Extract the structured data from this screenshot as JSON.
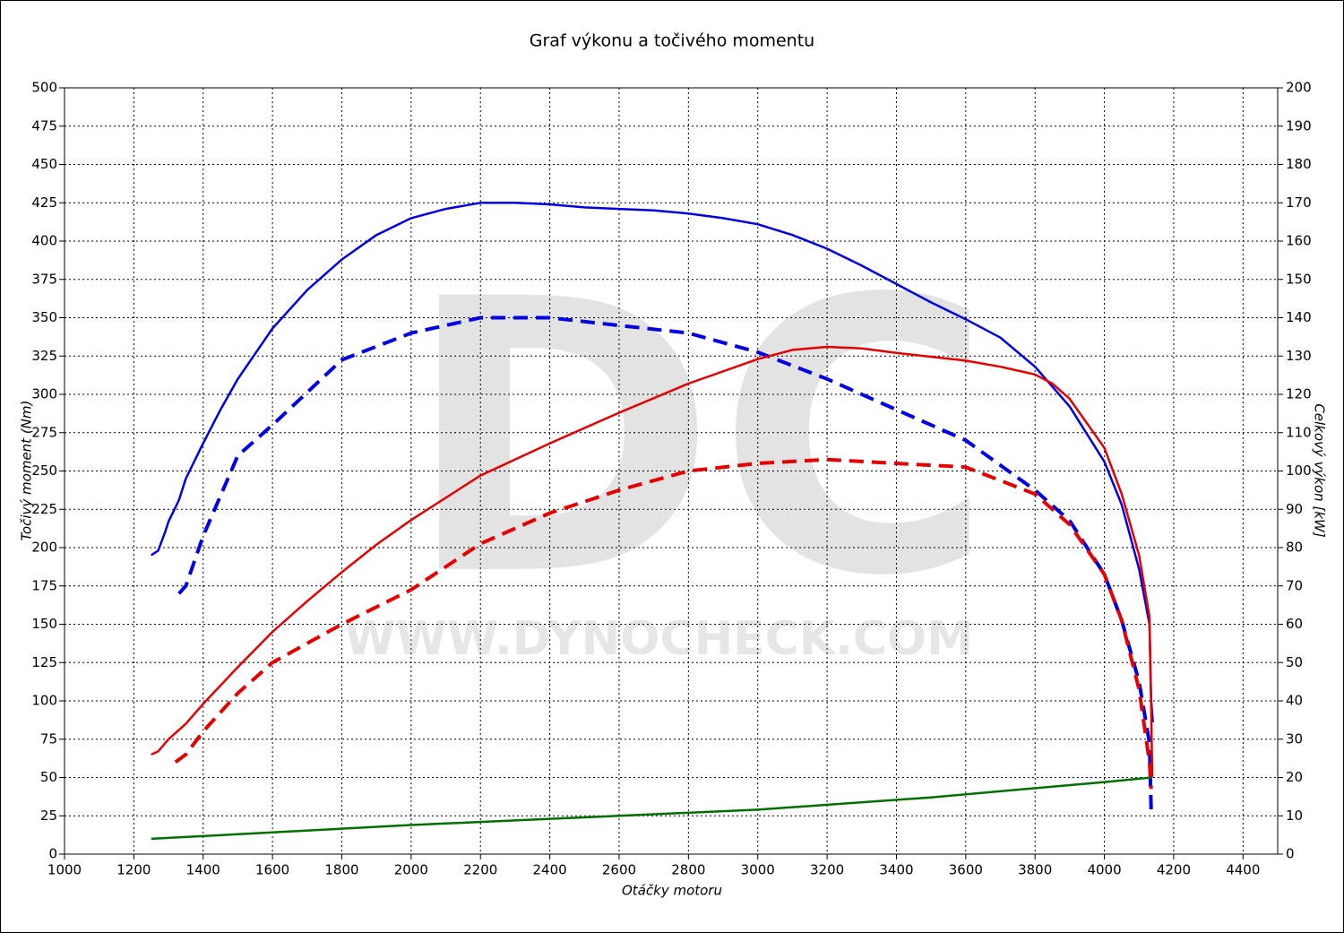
{
  "chart_data": {
    "type": "line",
    "title": "Graf výkonu a točivého momentu",
    "x_label": "Otáčky motoru",
    "y_label": "Točivý moment (Nm)",
    "y2_label": "Celkový výkon [kW]",
    "watermark_logo": "DC",
    "watermark_url": "WWW.DYNOCHECK.COM",
    "xlim": [
      1000,
      4500
    ],
    "xticks": [
      1000,
      1200,
      1400,
      1600,
      1800,
      2000,
      2200,
      2400,
      2600,
      2800,
      3000,
      3200,
      3400,
      3600,
      3800,
      4000,
      4200,
      4400
    ],
    "ylim": [
      0,
      500
    ],
    "yticks": [
      0,
      25,
      50,
      75,
      100,
      125,
      150,
      175,
      200,
      225,
      250,
      275,
      300,
      325,
      350,
      375,
      400,
      425,
      450,
      475,
      500
    ],
    "y2lim": [
      0,
      200
    ],
    "y2ticks": [
      0,
      10,
      20,
      30,
      40,
      50,
      60,
      70,
      80,
      90,
      100,
      110,
      120,
      130,
      140,
      150,
      160,
      170,
      180,
      190,
      200
    ],
    "grid": true,
    "series": [
      {
        "color": "#0000e6",
        "dash": false,
        "axis": "y",
        "x": [
          1250,
          1270,
          1290,
          1300,
          1330,
          1350,
          1400,
          1450,
          1500,
          1600,
          1700,
          1800,
          1900,
          2000,
          2100,
          2200,
          2300,
          2400,
          2500,
          2600,
          2700,
          2800,
          2900,
          3000,
          3100,
          3200,
          3300,
          3400,
          3500,
          3600,
          3700,
          3800,
          3900,
          4000,
          4050,
          4100,
          4130,
          4135,
          4140
        ],
        "values": [
          195,
          198,
          210,
          217,
          231,
          245,
          268,
          290,
          310,
          343,
          368,
          388,
          404,
          415,
          421,
          425,
          425,
          424,
          422,
          421,
          420,
          418,
          415,
          411,
          404,
          395,
          384,
          372,
          360,
          349,
          337,
          318,
          292,
          256,
          228,
          186,
          150,
          100,
          86
        ]
      },
      {
        "color": "#0000e6",
        "dash": true,
        "axis": "y2",
        "x": [
          1330,
          1350,
          1400,
          1500,
          1600,
          1800,
          2000,
          2200,
          2400,
          2600,
          2800,
          3000,
          3200,
          3400,
          3600,
          3800,
          3900,
          4000,
          4050,
          4100,
          4130,
          4135
        ],
        "values": [
          68,
          70,
          83,
          104,
          112,
          129,
          136,
          140,
          140,
          138,
          136,
          131,
          124,
          116,
          108,
          95,
          87,
          73,
          61,
          45,
          29,
          11
        ]
      },
      {
        "color": "#e60000",
        "dash": false,
        "axis": "y",
        "x": [
          1250,
          1270,
          1300,
          1350,
          1400,
          1500,
          1600,
          1700,
          1800,
          1900,
          2000,
          2200,
          2400,
          2600,
          2800,
          3000,
          3100,
          3200,
          3300,
          3400,
          3600,
          3700,
          3800,
          3850,
          3900,
          4000,
          4050,
          4100,
          4130,
          4135,
          4138
        ],
        "values": [
          65,
          67,
          75,
          85,
          98,
          122,
          145,
          165,
          184,
          202,
          218,
          247,
          268,
          288,
          307,
          323,
          329,
          331,
          330,
          327,
          322,
          318,
          313,
          307,
          297,
          265,
          235,
          195,
          155,
          95,
          50
        ]
      },
      {
        "color": "#e60000",
        "dash": true,
        "axis": "y2",
        "x": [
          1320,
          1350,
          1400,
          1500,
          1600,
          1800,
          2000,
          2200,
          2400,
          2600,
          2800,
          3000,
          3200,
          3400,
          3600,
          3800,
          3900,
          4000,
          4050,
          4100,
          4130,
          4135
        ],
        "values": [
          24,
          26,
          32,
          42,
          50,
          60,
          69,
          81,
          89,
          95,
          100,
          102,
          103,
          102,
          101,
          94,
          86,
          73,
          61,
          43,
          24,
          17
        ]
      },
      {
        "color": "#007000",
        "dash": false,
        "axis": "y",
        "x": [
          1250,
          2000,
          3000,
          3500,
          4000,
          4135
        ],
        "values": [
          10,
          19,
          29,
          37,
          47,
          50
        ]
      }
    ]
  }
}
